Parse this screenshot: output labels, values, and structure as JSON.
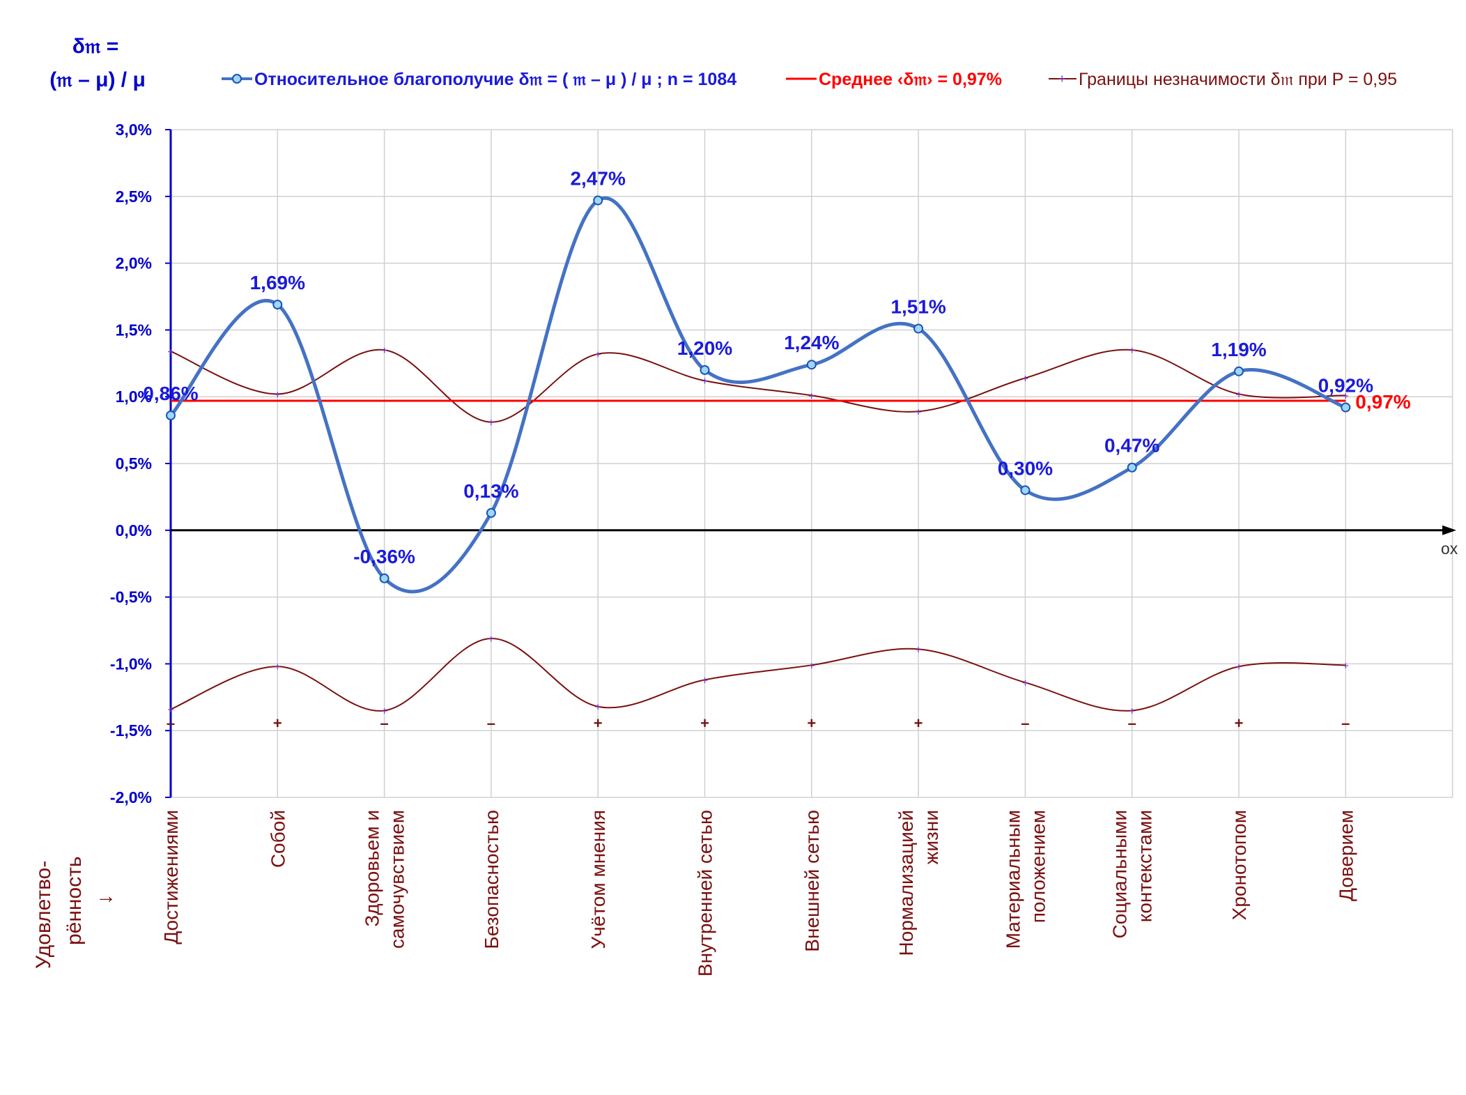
{
  "header": {
    "ylabel_line1": "δ𝔪 =",
    "ylabel_line2": "(𝔪 – μ) / μ",
    "legend": {
      "main": "Относительное благополучие δ𝔪 = ( 𝔪 – μ ) / μ ; n = 1084",
      "mean": "Среднее ‹δ𝔪› = 0,97%",
      "bounds": "Границы незначимости δ𝔪 при P = 0,95"
    },
    "left_axis_caption": [
      "Удовлетво-",
      "рённость",
      "↓"
    ],
    "x_axis_caption": "ox"
  },
  "colors": {
    "series": "#4472c4",
    "marker_fill": "#9fd6ff",
    "mean": "#ff0000",
    "bounds": "#7a1010",
    "axis": "#0000cc",
    "grid": "#d0d0d0"
  },
  "chart_data": {
    "type": "line",
    "categories": [
      [
        "Достижениями"
      ],
      [
        "Собой"
      ],
      [
        "Здоровьем и",
        "самочувствием"
      ],
      [
        "Безопасностью"
      ],
      [
        "Учётом мнения"
      ],
      [
        "Внутренней сетью"
      ],
      [
        "Внешней сетью"
      ],
      [
        "Нормализацией",
        "жизни"
      ],
      [
        "Материальным",
        "положением"
      ],
      [
        "Социальными",
        "контекстами"
      ],
      [
        "Хронотопом"
      ],
      [
        "Доверием"
      ]
    ],
    "series": [
      {
        "name": "Относительное благополучие δ𝔪 = ( 𝔪 – μ ) / μ ; n = 1084",
        "values": [
          0.86,
          1.69,
          -0.36,
          0.13,
          2.47,
          1.2,
          1.24,
          1.51,
          0.3,
          0.47,
          1.19,
          0.92
        ],
        "labels": [
          "0,86%",
          "1,69%",
          "-0,36%",
          "0,13%",
          "2,47%",
          "1,20%",
          "1,24%",
          "1,51%",
          "0,30%",
          "0,47%",
          "1,19%",
          "0,92%"
        ]
      },
      {
        "name": "Границы незначимости δ𝔪 при P = 0,95",
        "upper": [
          1.34,
          1.02,
          1.35,
          0.81,
          1.32,
          1.12,
          1.01,
          0.89,
          1.14,
          1.35,
          1.02,
          1.01
        ],
        "lower": [
          -1.34,
          -1.02,
          -1.35,
          -0.81,
          -1.32,
          -1.12,
          -1.01,
          -0.89,
          -1.14,
          -1.35,
          -1.02,
          -1.01
        ]
      }
    ],
    "mean": {
      "value": 0.97,
      "label": "0,97%"
    },
    "significance_signs": [
      "–",
      "+",
      "–",
      "–",
      "+",
      "+",
      "+",
      "+",
      "–",
      "–",
      "+",
      "–"
    ],
    "ylim": [
      -2.0,
      3.0
    ],
    "yticks": [
      3.0,
      2.5,
      2.0,
      1.5,
      1.0,
      0.5,
      0.0,
      -0.5,
      -1.0,
      -1.5,
      -2.0
    ],
    "ytick_labels": [
      "3,0%",
      "2,5%",
      "2,0%",
      "1,5%",
      "1,0%",
      "0,5%",
      "0,0%",
      "-0,5%",
      "-1,0%",
      "-1,5%",
      "-2,0%"
    ],
    "grid": true,
    "legend_position": "top"
  }
}
